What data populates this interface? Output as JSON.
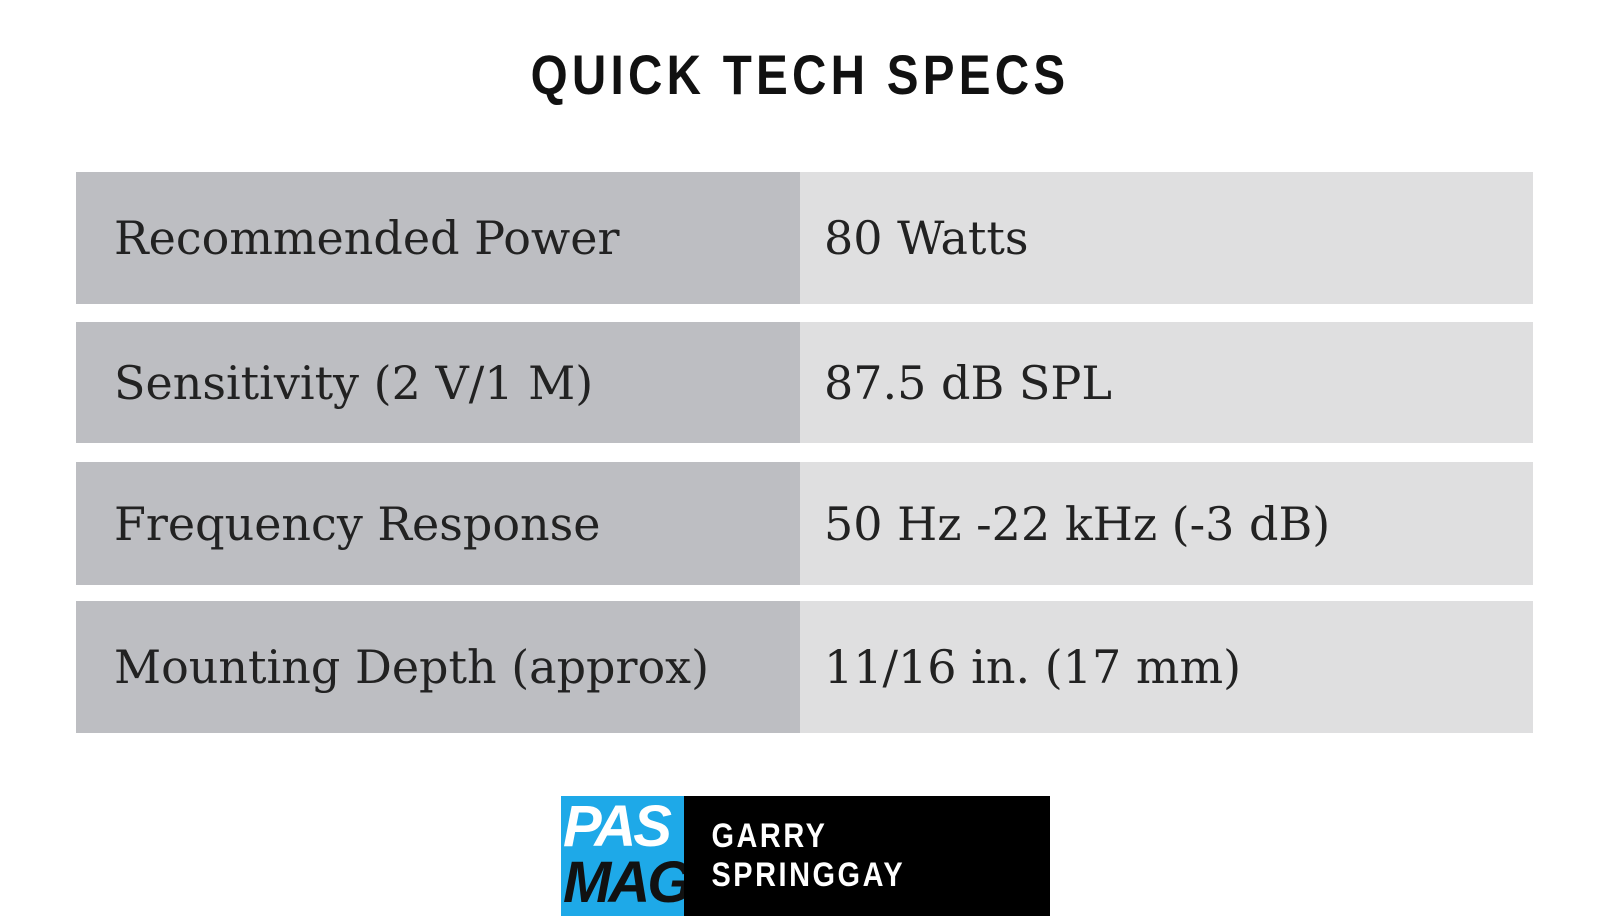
{
  "header": {
    "title": "QUICK TECH SPECS"
  },
  "table": {
    "rows": [
      [
        "Recommended Power",
        "80 Watts"
      ],
      [
        "Sensitivity (2 V/1 M)",
        "87.5 dB SPL"
      ],
      [
        "Frequency Response",
        "50 Hz -22 kHz (-3 dB)"
      ],
      [
        "Mounting Depth (approx)",
        "11/16 in. (17 mm)"
      ]
    ]
  },
  "footer": {
    "logo_top": "PAS",
    "logo_bottom": "MAG",
    "author": "GARRY SPRINGGAY"
  }
}
